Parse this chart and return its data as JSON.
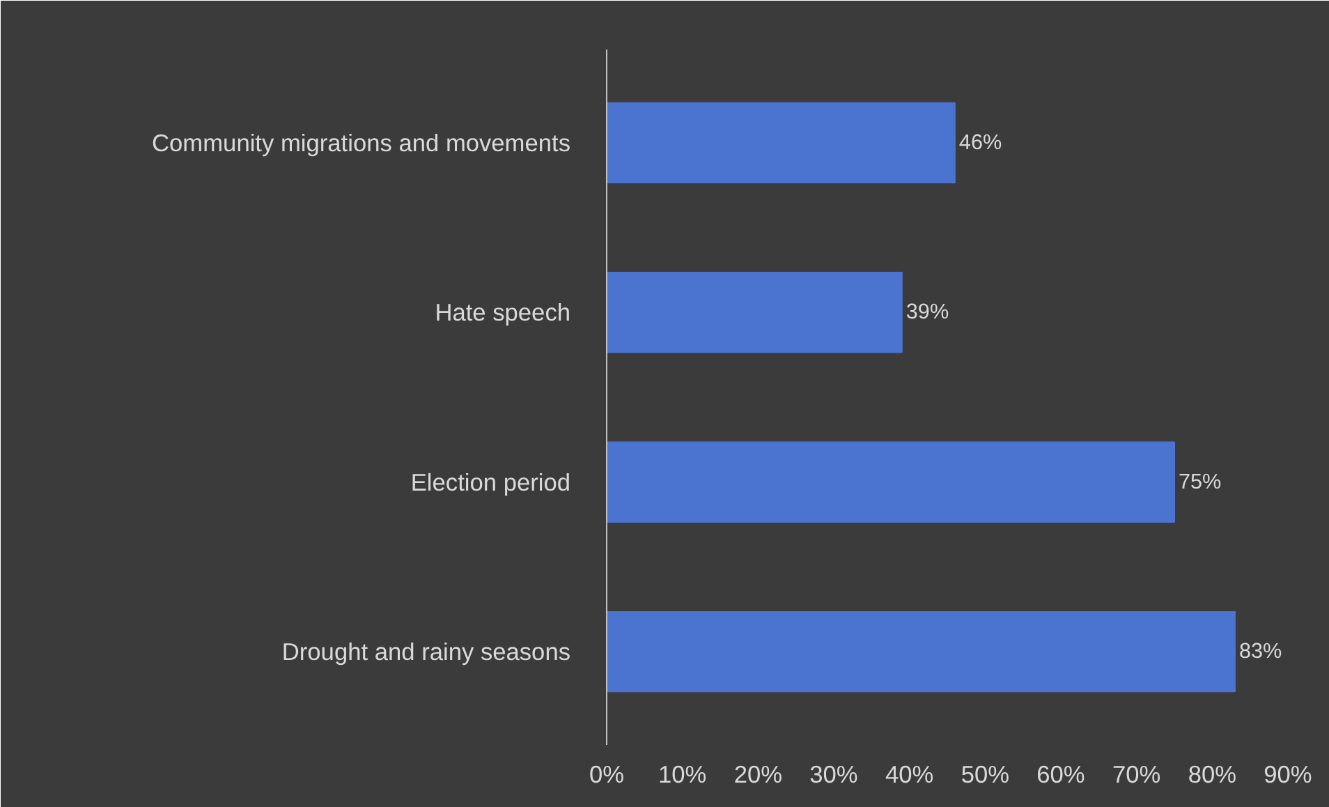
{
  "chart_data": {
    "type": "bar",
    "orientation": "horizontal",
    "categories": [
      "Community migrations and movements",
      "Hate speech",
      "Election period",
      "Drought and rainy seasons"
    ],
    "values": [
      46,
      39,
      75,
      83
    ],
    "value_labels": [
      "46%",
      "39%",
      "75%",
      "83%"
    ],
    "color": "#4a74d0",
    "xlim": [
      0,
      90
    ],
    "xticks": [
      {
        "value": 0,
        "label": "0%"
      },
      {
        "value": 10,
        "label": "10%"
      },
      {
        "value": 20,
        "label": "20%"
      },
      {
        "value": 30,
        "label": "30%"
      },
      {
        "value": 40,
        "label": "40%"
      },
      {
        "value": 50,
        "label": "50%"
      },
      {
        "value": 60,
        "label": "60%"
      },
      {
        "value": 70,
        "label": "70%"
      },
      {
        "value": 80,
        "label": "80%"
      },
      {
        "value": 90,
        "label": "90%"
      }
    ],
    "grid": false
  }
}
